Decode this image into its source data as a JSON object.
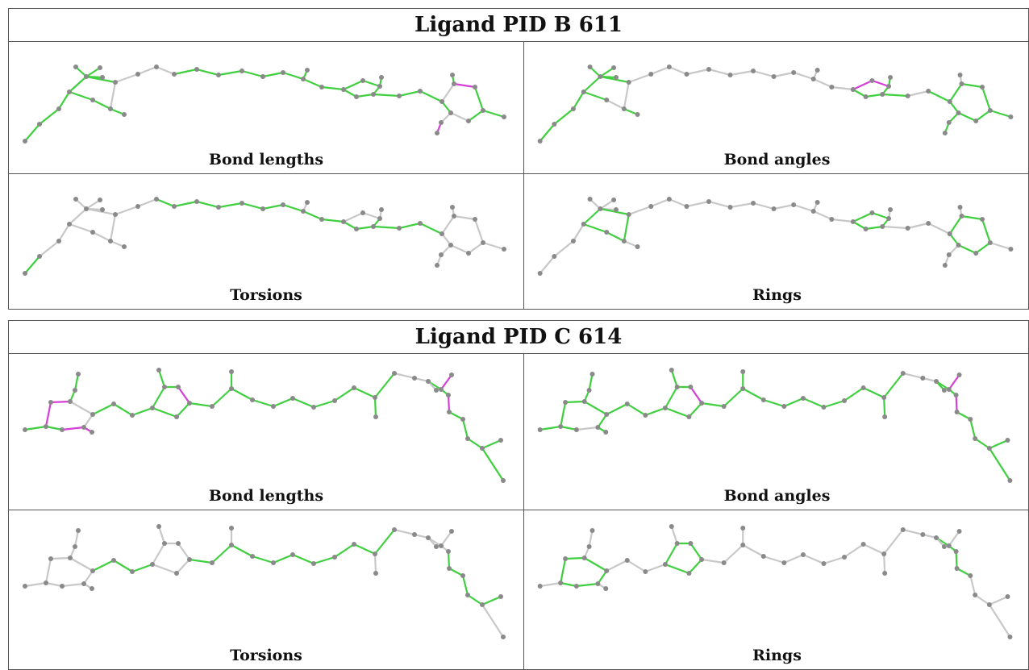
{
  "panels": [
    {
      "title": "Ligand PID B 611",
      "cells": [
        {
          "caption": "Bond lengths"
        },
        {
          "caption": "Bond angles"
        },
        {
          "caption": "Torsions"
        },
        {
          "caption": "Rings"
        }
      ]
    },
    {
      "title": "Ligand PID C 614",
      "cells": [
        {
          "caption": "Bond lengths"
        },
        {
          "caption": "Bond angles"
        },
        {
          "caption": "Torsions"
        },
        {
          "caption": "Rings"
        }
      ]
    }
  ],
  "colors": {
    "good": "#3fcf3f",
    "outlier": "#d63fd6",
    "neutral": "#c8c8c8",
    "atom": "#8a8a8a"
  }
}
